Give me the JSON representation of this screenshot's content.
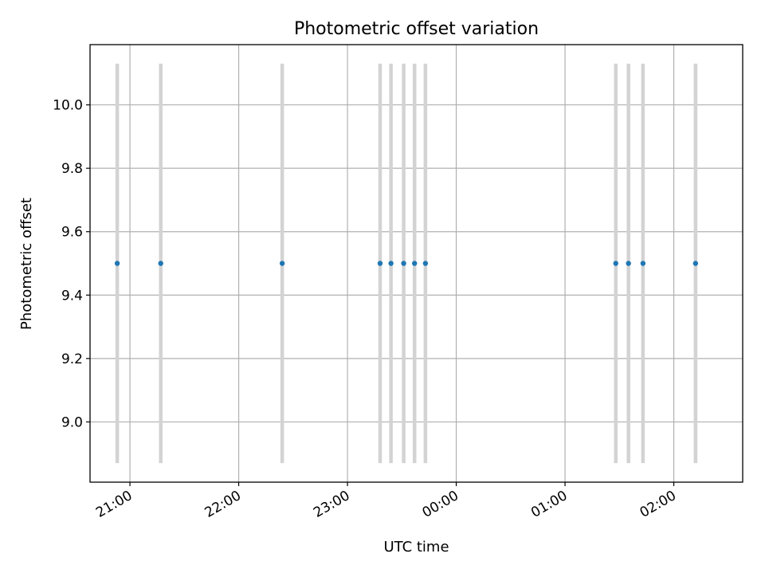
{
  "chart_data": {
    "type": "scatter",
    "title": "Photometric offset variation",
    "xlabel": "UTC time",
    "ylabel": "Photometric offset",
    "x_axis": {
      "kind": "time",
      "range": [
        "20:38",
        "02:38"
      ],
      "ticks": [
        "21:00",
        "22:00",
        "23:00",
        "00:00",
        "01:00",
        "02:00"
      ],
      "tick_label_rotation": 30
    },
    "y_axis": {
      "range": [
        8.81,
        10.19
      ],
      "ticks": [
        "9.0",
        "9.2",
        "9.4",
        "9.6",
        "9.8",
        "10.0"
      ]
    },
    "grid": true,
    "series": [
      {
        "color": "#1f77b4",
        "errorbar_color": "#d3d3d3",
        "points": [
          {
            "x": "20:53",
            "y": 9.5,
            "err": 0.63
          },
          {
            "x": "21:17",
            "y": 9.5,
            "err": 0.63
          },
          {
            "x": "22:24",
            "y": 9.5,
            "err": 0.63
          },
          {
            "x": "23:18",
            "y": 9.5,
            "err": 0.63
          },
          {
            "x": "23:24",
            "y": 9.5,
            "err": 0.63
          },
          {
            "x": "23:31",
            "y": 9.5,
            "err": 0.63
          },
          {
            "x": "23:37",
            "y": 9.5,
            "err": 0.63
          },
          {
            "x": "23:43",
            "y": 9.5,
            "err": 0.63
          },
          {
            "x": "01:28",
            "y": 9.5,
            "err": 0.63
          },
          {
            "x": "01:35",
            "y": 9.5,
            "err": 0.63
          },
          {
            "x": "01:43",
            "y": 9.5,
            "err": 0.63
          },
          {
            "x": "02:12",
            "y": 9.5,
            "err": 0.63
          }
        ]
      }
    ]
  }
}
